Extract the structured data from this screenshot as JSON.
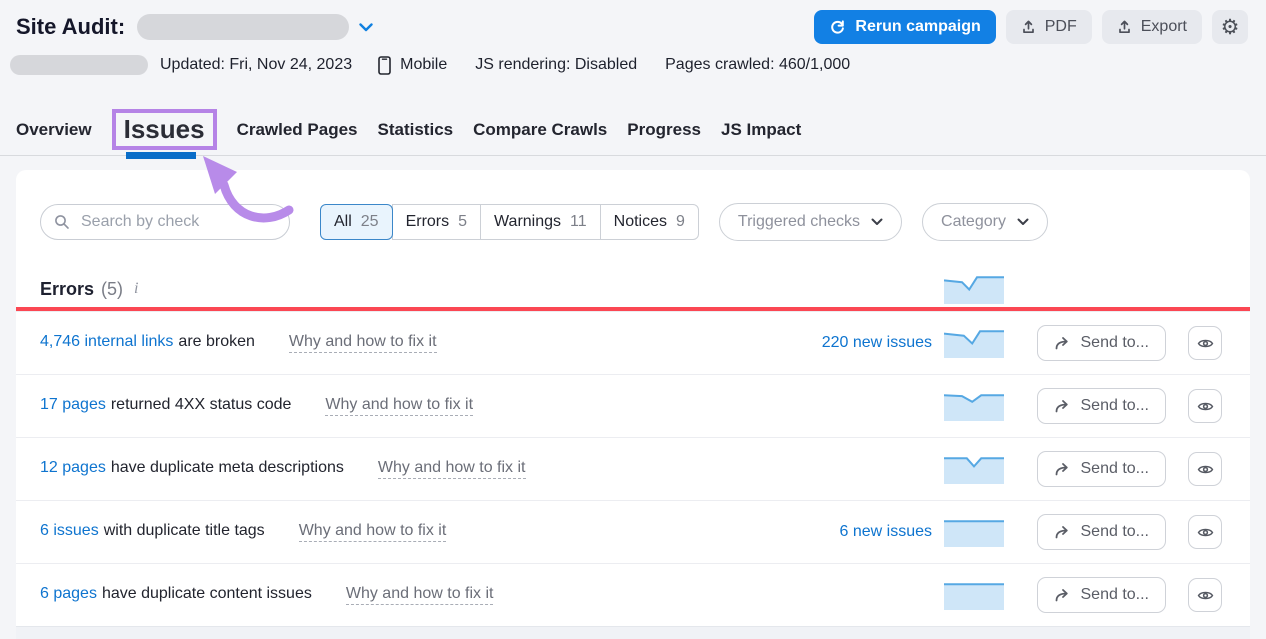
{
  "header": {
    "title": "Site Audit:",
    "rerun_button": "Rerun campaign",
    "pdf_button": "PDF",
    "export_button": "Export"
  },
  "meta": {
    "updated": "Updated: Fri, Nov 24, 2023",
    "device": "Mobile",
    "js_rendering": "JS rendering: Disabled",
    "pages_crawled": "Pages crawled: 460/1,000"
  },
  "tabs": [
    {
      "label": "Overview",
      "active": false
    },
    {
      "label": "Issues",
      "active": true
    },
    {
      "label": "Crawled Pages",
      "active": false
    },
    {
      "label": "Statistics",
      "active": false
    },
    {
      "label": "Compare Crawls",
      "active": false
    },
    {
      "label": "Progress",
      "active": false
    },
    {
      "label": "JS Impact",
      "active": false
    }
  ],
  "filters": {
    "search_placeholder": "Search by check",
    "segments": [
      {
        "label": "All",
        "count": "25",
        "selected": true
      },
      {
        "label": "Errors",
        "count": "5",
        "selected": false
      },
      {
        "label": "Warnings",
        "count": "11",
        "selected": false
      },
      {
        "label": "Notices",
        "count": "9",
        "selected": false
      }
    ],
    "triggered_checks_dropdown": "Triggered checks",
    "category_dropdown": "Category"
  },
  "section": {
    "title": "Errors",
    "count": "(5)",
    "spark": [
      [
        0,
        0.85
      ],
      [
        0.3,
        0.78
      ],
      [
        0.42,
        0.5
      ],
      [
        0.55,
        0.97
      ],
      [
        1,
        0.97
      ]
    ]
  },
  "actions": {
    "send_to": "Send to..."
  },
  "issues": [
    {
      "link": "4,746 internal links",
      "text": "are broken",
      "help": "Why and how to fix it",
      "new_issues": "220 new issues",
      "spark": [
        [
          0,
          0.88
        ],
        [
          0.33,
          0.8
        ],
        [
          0.47,
          0.5
        ],
        [
          0.6,
          0.97
        ],
        [
          1,
          0.97
        ]
      ]
    },
    {
      "link": "17 pages",
      "text": "returned 4XX status code",
      "help": "Why and how to fix it",
      "new_issues": "",
      "spark": [
        [
          0,
          0.93
        ],
        [
          0.3,
          0.9
        ],
        [
          0.47,
          0.68
        ],
        [
          0.62,
          0.93
        ],
        [
          1,
          0.93
        ]
      ]
    },
    {
      "link": "12 pages",
      "text": "have duplicate meta descriptions",
      "help": "Why and how to fix it",
      "new_issues": "",
      "spark": [
        [
          0,
          0.93
        ],
        [
          0.38,
          0.93
        ],
        [
          0.5,
          0.62
        ],
        [
          0.62,
          0.93
        ],
        [
          1,
          0.93
        ]
      ]
    },
    {
      "link": "6 issues",
      "text": "with duplicate title tags",
      "help": "Why and how to fix it",
      "new_issues": "6 new issues",
      "spark": [
        [
          0,
          0.93
        ],
        [
          1,
          0.93
        ]
      ]
    },
    {
      "link": "6 pages",
      "text": "have duplicate content issues",
      "help": "Why and how to fix it",
      "new_issues": "",
      "spark": [
        [
          0,
          0.93
        ],
        [
          1,
          0.93
        ]
      ]
    }
  ],
  "colors": {
    "accent_blue": "#1280e4",
    "link_blue": "#0e74cf",
    "red_line": "#fb4753",
    "annotation_purple": "#b583e6",
    "spark_fill": "#cfe6f8",
    "spark_line": "#56a8e3"
  }
}
